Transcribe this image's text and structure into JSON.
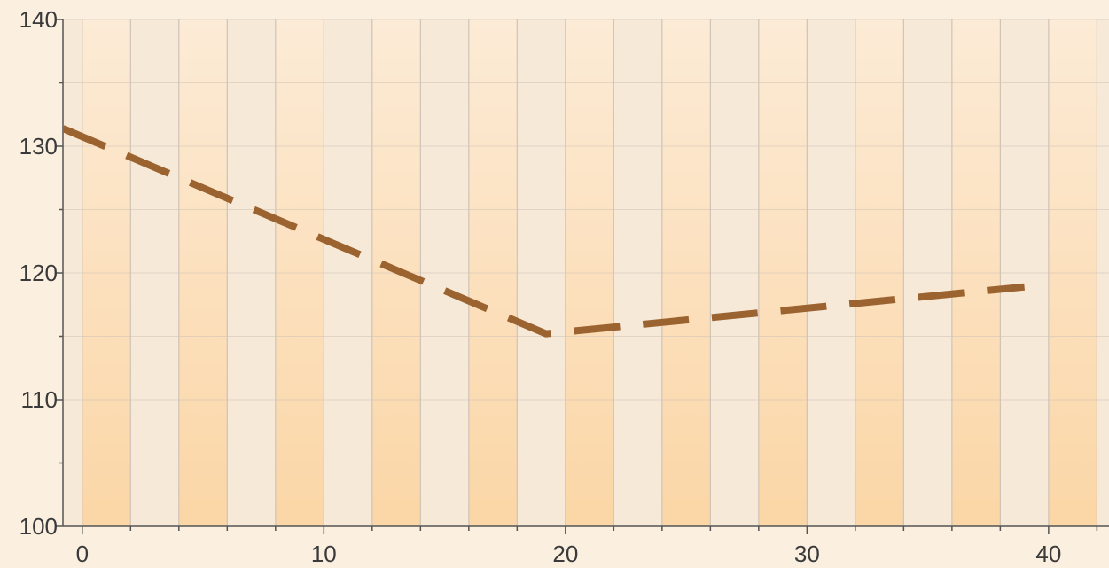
{
  "chart_data": {
    "type": "line",
    "title": "",
    "xlabel": "",
    "ylabel": "",
    "xlim": [
      -0.8,
      42.5
    ],
    "ylim": [
      100,
      140
    ],
    "x_ticks": [
      0,
      10,
      20,
      30,
      40
    ],
    "x_tick_labels": [
      "0",
      "10",
      "20",
      "30",
      "40"
    ],
    "y_ticks": [
      100,
      110,
      120,
      130,
      140
    ],
    "y_tick_labels": [
      "100",
      "110",
      "120",
      "130",
      "140"
    ],
    "x_minor_step": 2,
    "y_minor_step": 5,
    "grid": true,
    "line_style": "dashed",
    "series": [
      {
        "color": "#9b6330",
        "x": [
          -0.8,
          19.2,
          39
        ],
        "y": [
          131.4,
          115.2,
          118.9
        ]
      }
    ],
    "colors": {
      "background": "#fbefdf",
      "band_light": "#f7e9d8",
      "band_warm_top": "#fcebd6",
      "band_warm_bottom": "#fbd6a6",
      "grid": "#cfc3b6",
      "axis": "#555555"
    }
  }
}
